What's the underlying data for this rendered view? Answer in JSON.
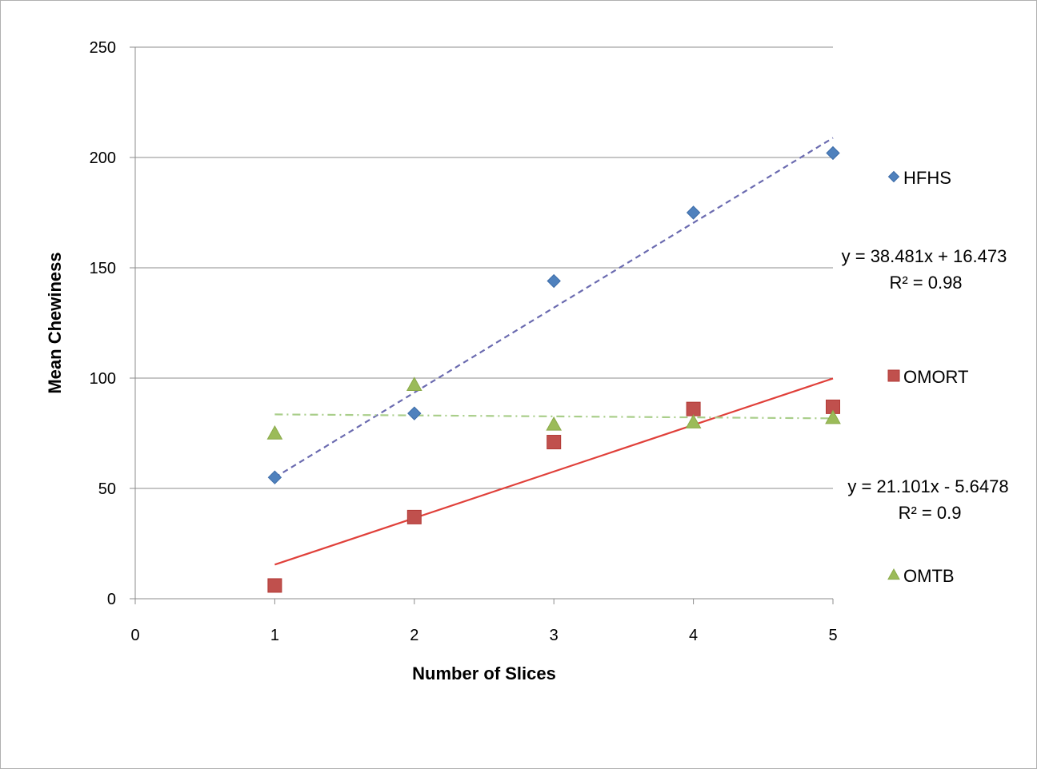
{
  "chart_data": {
    "type": "scatter",
    "title": "",
    "xlabel": "Number of Slices",
    "ylabel": "Mean  Chewiness",
    "xlim": [
      0,
      5
    ],
    "ylim": [
      0,
      250
    ],
    "x_ticks": [
      "0",
      "1",
      "2",
      "3",
      "4",
      "5"
    ],
    "y_ticks": [
      "0",
      "50",
      "100",
      "150",
      "200",
      "250"
    ],
    "grid": "horizontal",
    "legend_position": "right",
    "series": [
      {
        "name": "HFHS",
        "color": "#4F81BD",
        "marker": "diamond",
        "points": [
          [
            1,
            55
          ],
          [
            2,
            84
          ],
          [
            3,
            144
          ],
          [
            4,
            175
          ],
          [
            5,
            202
          ]
        ],
        "trendline": {
          "slope": 38.481,
          "intercept": 16.473,
          "style": "dashed",
          "color": "#6B6BB0",
          "x_range": [
            1,
            5
          ]
        }
      },
      {
        "name": "OMORT",
        "color": "#C0504D",
        "marker": "square",
        "points": [
          [
            1,
            6
          ],
          [
            2,
            37
          ],
          [
            3,
            71
          ],
          [
            4,
            86
          ],
          [
            5,
            87
          ]
        ],
        "trendline": {
          "slope": 21.101,
          "intercept": -5.6478,
          "style": "solid",
          "color": "#E0403A",
          "x_range": [
            1,
            5
          ]
        }
      },
      {
        "name": "OMTB",
        "color": "#9BBB59",
        "marker": "triangle",
        "points": [
          [
            1,
            75
          ],
          [
            2,
            97
          ],
          [
            3,
            79
          ],
          [
            4,
            80
          ],
          [
            5,
            82
          ]
        ],
        "trendline": {
          "slope": -0.45,
          "intercept": 84.0,
          "style": "dashdot",
          "color": "#A9CE8A",
          "x_range": [
            1,
            5
          ]
        }
      }
    ],
    "annotations": [
      {
        "line1": "y = 38.481x + 16.473",
        "line2": "R² = 0.98"
      },
      {
        "line1": "y = 21.101x - 5.6478",
        "line2": "R² = 0.9"
      }
    ]
  }
}
